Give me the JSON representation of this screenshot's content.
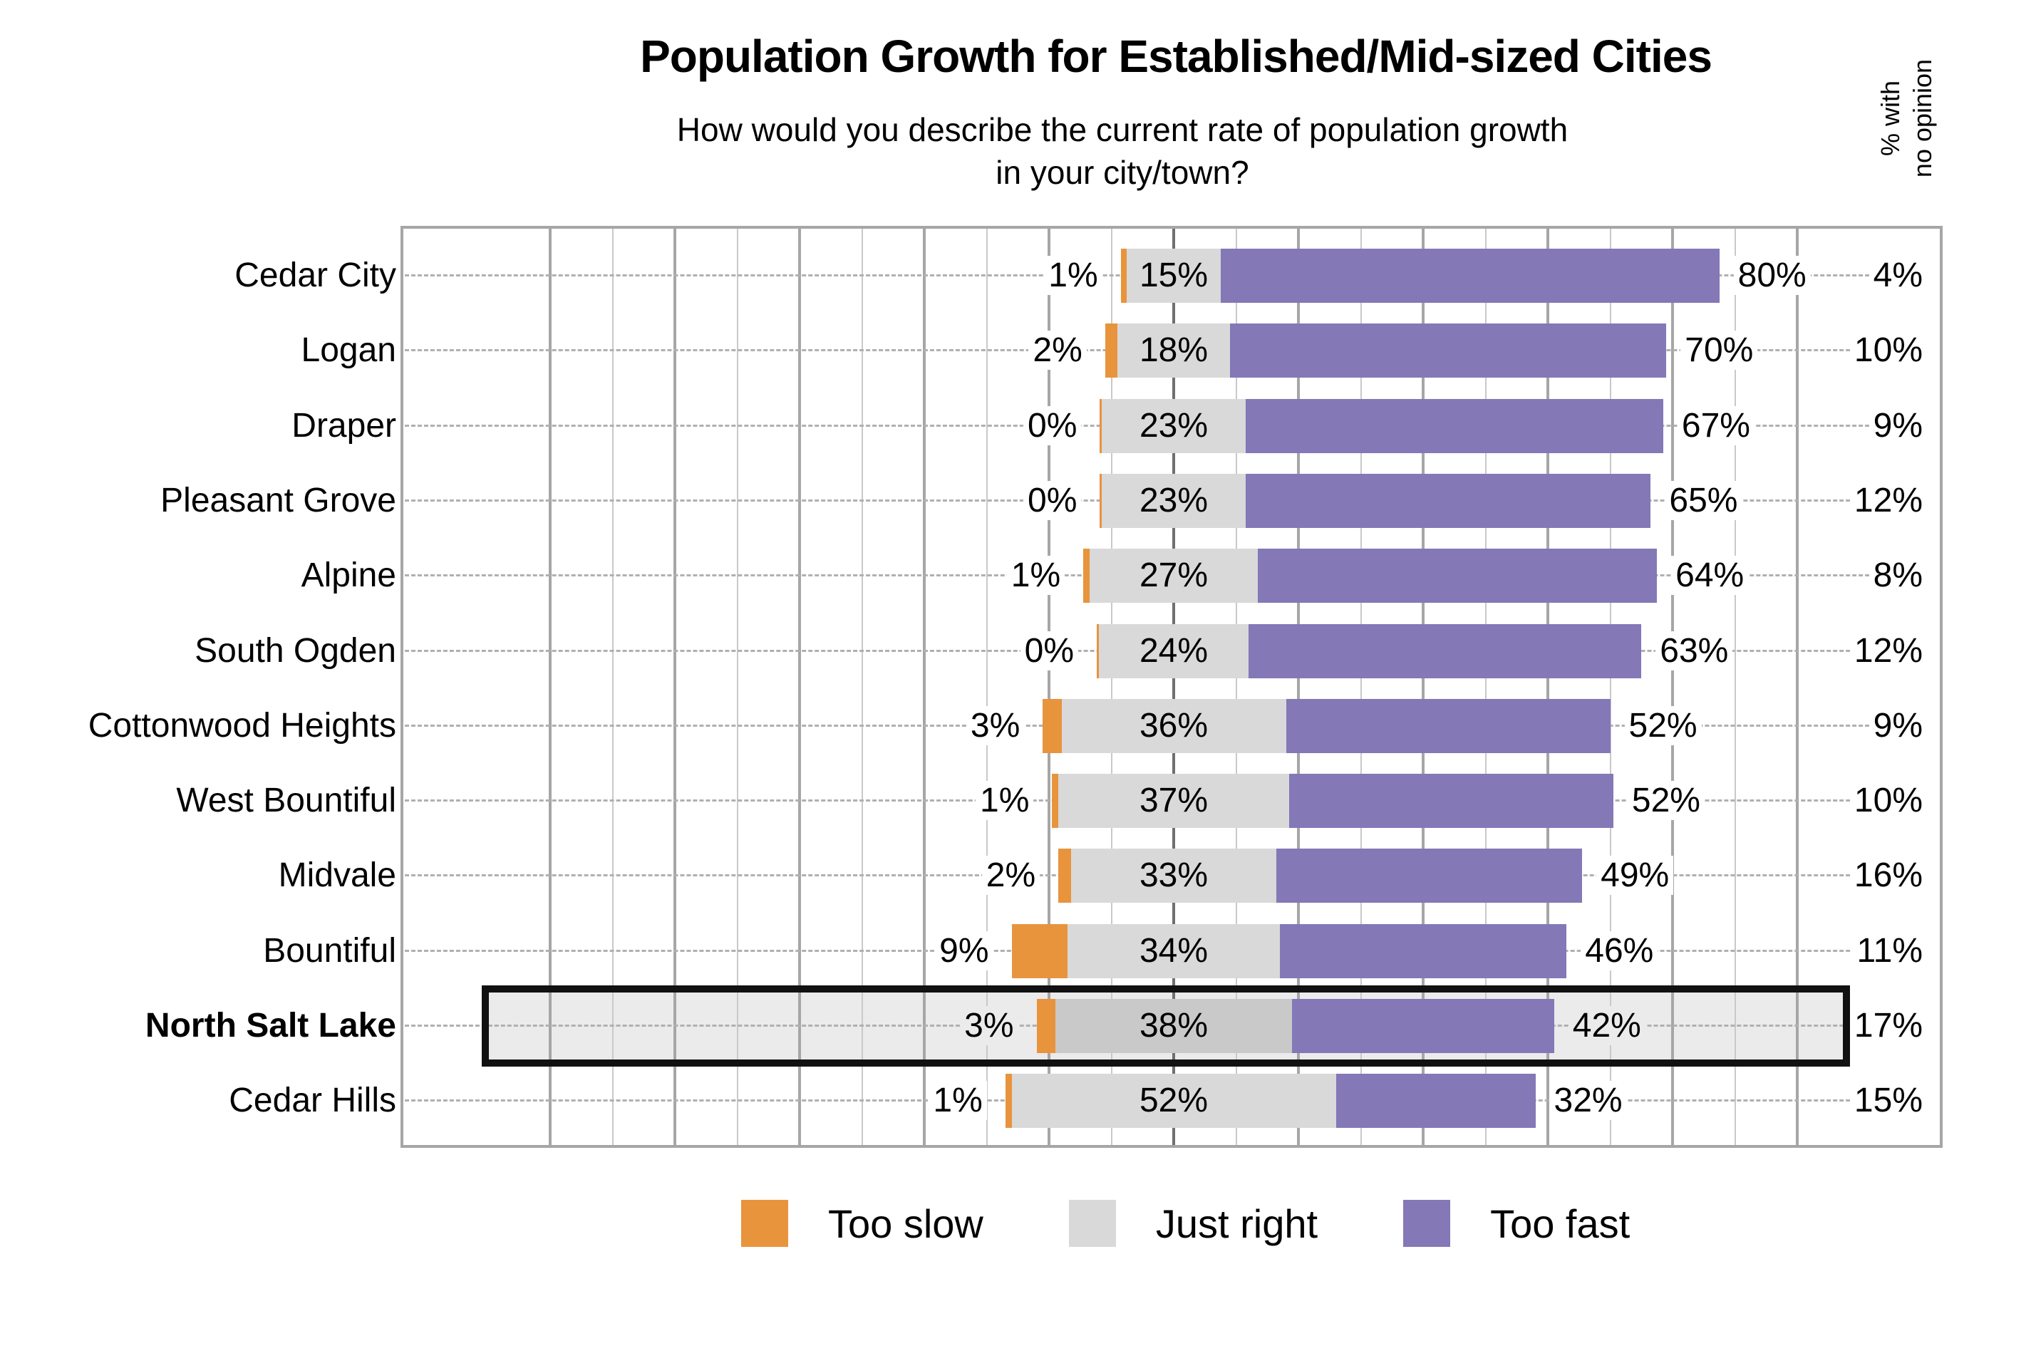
{
  "title": "Population Growth for Established/Mid-sized Cities",
  "subtitle_line1": "How would you describe the current rate of population growth",
  "subtitle_line2": "in your city/town?",
  "no_opinion_header_line1": "% with",
  "no_opinion_header_line2": "no opinion",
  "legend": {
    "items": [
      {
        "label": "Too slow",
        "color": "#e8943d"
      },
      {
        "label": "Just right",
        "color": "#d9d9d9"
      },
      {
        "label": "Too fast",
        "color": "#8478b7"
      }
    ]
  },
  "colors": {
    "too_slow": "#e8943d",
    "just_right": "#d9d9d9",
    "just_right_highlighted": "#c9c9c9",
    "too_fast": "#8478b7",
    "highlight_fill": "#ebebeb",
    "highlight_border": "#111111",
    "gridline_minor": "#c9c9c9",
    "gridline_major": "#a6a6a6",
    "gridline_center": "#6f6f6f",
    "plot_border": "#a6a6a6",
    "leader_dash": "#b0b0b0"
  },
  "chart_data": {
    "type": "bar",
    "variant": "horizontal-diverging-stacked",
    "title": "Population Growth for Established/Mid-sized Cities",
    "subtitle": "How would you describe the current rate of population growth in your city/town?",
    "categories": [
      "Cedar City",
      "Logan",
      "Draper",
      "Pleasant Grove",
      "Alpine",
      "South Ogden",
      "Cottonwood Heights",
      "West Bountiful",
      "Midvale",
      "Bountiful",
      "North Salt Lake",
      "Cedar Hills"
    ],
    "series": [
      {
        "name": "Too slow",
        "values": [
          1,
          2,
          0,
          0,
          1,
          0,
          3,
          1,
          2,
          9,
          3,
          1
        ]
      },
      {
        "name": "Just right",
        "values": [
          15,
          18,
          23,
          23,
          27,
          24,
          36,
          37,
          33,
          34,
          38,
          52
        ]
      },
      {
        "name": "Too fast",
        "values": [
          80,
          70,
          67,
          65,
          64,
          63,
          52,
          52,
          49,
          46,
          42,
          32
        ]
      }
    ],
    "no_opinion_column": {
      "label": "% with no opinion",
      "values": [
        4,
        10,
        9,
        12,
        8,
        12,
        9,
        10,
        16,
        11,
        17,
        15
      ]
    },
    "highlighted_category": "North Salt Lake",
    "axis": {
      "unit": "%",
      "neutral_centered": true,
      "gridline_step_pct": 10,
      "major_gridline_every_pct": 20,
      "gridline_range_pct": [
        -100,
        100
      ]
    },
    "legend_position": "bottom",
    "grid": true
  }
}
